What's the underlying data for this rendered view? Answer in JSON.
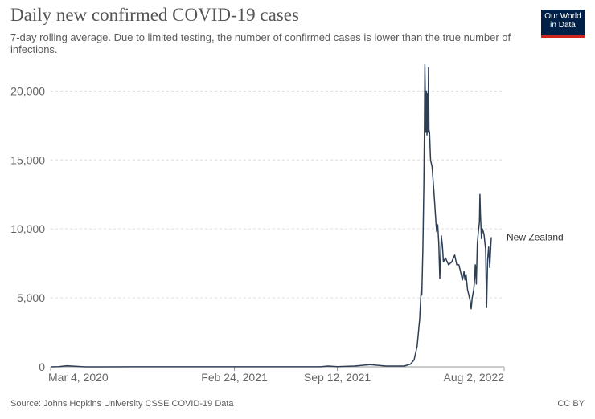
{
  "header": {
    "title": "Daily new confirmed COVID-19 cases",
    "subtitle": "7-day rolling average. Due to limited testing, the number of confirmed cases is lower than the true number of infections.",
    "logo_text": "Our World in Data"
  },
  "footer": {
    "source": "Source: Johns Hopkins University CSSE COVID-19 Data",
    "license": "CC BY"
  },
  "colors": {
    "line": "#2e3f55",
    "grid": "#dddddd",
    "logo_bg": "#002147",
    "logo_accent": "#ce261e"
  },
  "chart_data": {
    "type": "line",
    "title": "Daily new confirmed COVID-19 cases",
    "subtitle": "7-day rolling average. Due to limited testing, the number of confirmed cases is lower than the true number of infections.",
    "xlabel": "",
    "ylabel": "",
    "x_ticks": [
      "Mar 4, 2020",
      "Feb 24, 2021",
      "Sep 12, 2021",
      "Aug 2, 2022"
    ],
    "y_ticks": [
      "0",
      "5,000",
      "10,000",
      "15,000",
      "20,000"
    ],
    "ylim": [
      0,
      22000
    ],
    "xlim": [
      "2020-03-04",
      "2022-08-02"
    ],
    "grid": true,
    "series": [
      {
        "name": "New Zealand",
        "points": [
          [
            "2020-03-04",
            0
          ],
          [
            "2020-03-20",
            20
          ],
          [
            "2020-04-05",
            80
          ],
          [
            "2020-04-20",
            40
          ],
          [
            "2020-05-10",
            2
          ],
          [
            "2020-08-15",
            3
          ],
          [
            "2021-02-24",
            3
          ],
          [
            "2021-08-10",
            3
          ],
          [
            "2021-08-25",
            60
          ],
          [
            "2021-09-12",
            20
          ],
          [
            "2021-10-15",
            60
          ],
          [
            "2021-11-15",
            160
          ],
          [
            "2021-12-15",
            60
          ],
          [
            "2022-01-20",
            60
          ],
          [
            "2022-02-01",
            200
          ],
          [
            "2022-02-08",
            500
          ],
          [
            "2022-02-14",
            1500
          ],
          [
            "2022-02-19",
            3500
          ],
          [
            "2022-02-22",
            5800
          ],
          [
            "2022-02-23",
            5200
          ],
          [
            "2022-02-25",
            8500
          ],
          [
            "2022-02-27",
            13000
          ],
          [
            "2022-02-28",
            17000
          ],
          [
            "2022-03-01",
            21900
          ],
          [
            "2022-03-03",
            17000
          ],
          [
            "2022-03-04",
            20000
          ],
          [
            "2022-03-05",
            16800
          ],
          [
            "2022-03-06",
            19800
          ],
          [
            "2022-03-07",
            17000
          ],
          [
            "2022-03-08",
            21700
          ],
          [
            "2022-03-09",
            17200
          ],
          [
            "2022-03-10",
            17000
          ],
          [
            "2022-03-12",
            15000
          ],
          [
            "2022-03-15",
            14500
          ],
          [
            "2022-03-19",
            12500
          ],
          [
            "2022-03-23",
            10200
          ],
          [
            "2022-03-24",
            9800
          ],
          [
            "2022-03-26",
            10300
          ],
          [
            "2022-03-28",
            9000
          ],
          [
            "2022-03-30",
            6400
          ],
          [
            "2022-04-02",
            9500
          ],
          [
            "2022-04-04",
            8800
          ],
          [
            "2022-04-06",
            7600
          ],
          [
            "2022-04-10",
            7900
          ],
          [
            "2022-04-16",
            7400
          ],
          [
            "2022-04-22",
            7600
          ],
          [
            "2022-04-28",
            8100
          ],
          [
            "2022-05-02",
            7400
          ],
          [
            "2022-05-06",
            7400
          ],
          [
            "2022-05-10",
            6800
          ],
          [
            "2022-05-13",
            6300
          ],
          [
            "2022-05-16",
            6900
          ],
          [
            "2022-05-18",
            6300
          ],
          [
            "2022-05-20",
            6700
          ],
          [
            "2022-05-23",
            5600
          ],
          [
            "2022-05-28",
            4800
          ],
          [
            "2022-05-30",
            4200
          ],
          [
            "2022-06-01",
            5000
          ],
          [
            "2022-06-04",
            5600
          ],
          [
            "2022-06-06",
            6500
          ],
          [
            "2022-06-07",
            7400
          ],
          [
            "2022-06-08",
            7100
          ],
          [
            "2022-06-09",
            6000
          ],
          [
            "2022-06-11",
            9000
          ],
          [
            "2022-06-13",
            9800
          ],
          [
            "2022-06-15",
            10500
          ],
          [
            "2022-06-16",
            12500
          ],
          [
            "2022-06-17",
            11000
          ],
          [
            "2022-06-18",
            10200
          ],
          [
            "2022-06-19",
            9300
          ],
          [
            "2022-06-21",
            10000
          ],
          [
            "2022-06-24",
            9600
          ],
          [
            "2022-06-27",
            8500
          ],
          [
            "2022-06-29",
            4300
          ],
          [
            "2022-07-01",
            7800
          ],
          [
            "2022-07-03",
            8700
          ],
          [
            "2022-07-05",
            7200
          ],
          [
            "2022-07-08",
            9400
          ]
        ]
      }
    ]
  }
}
